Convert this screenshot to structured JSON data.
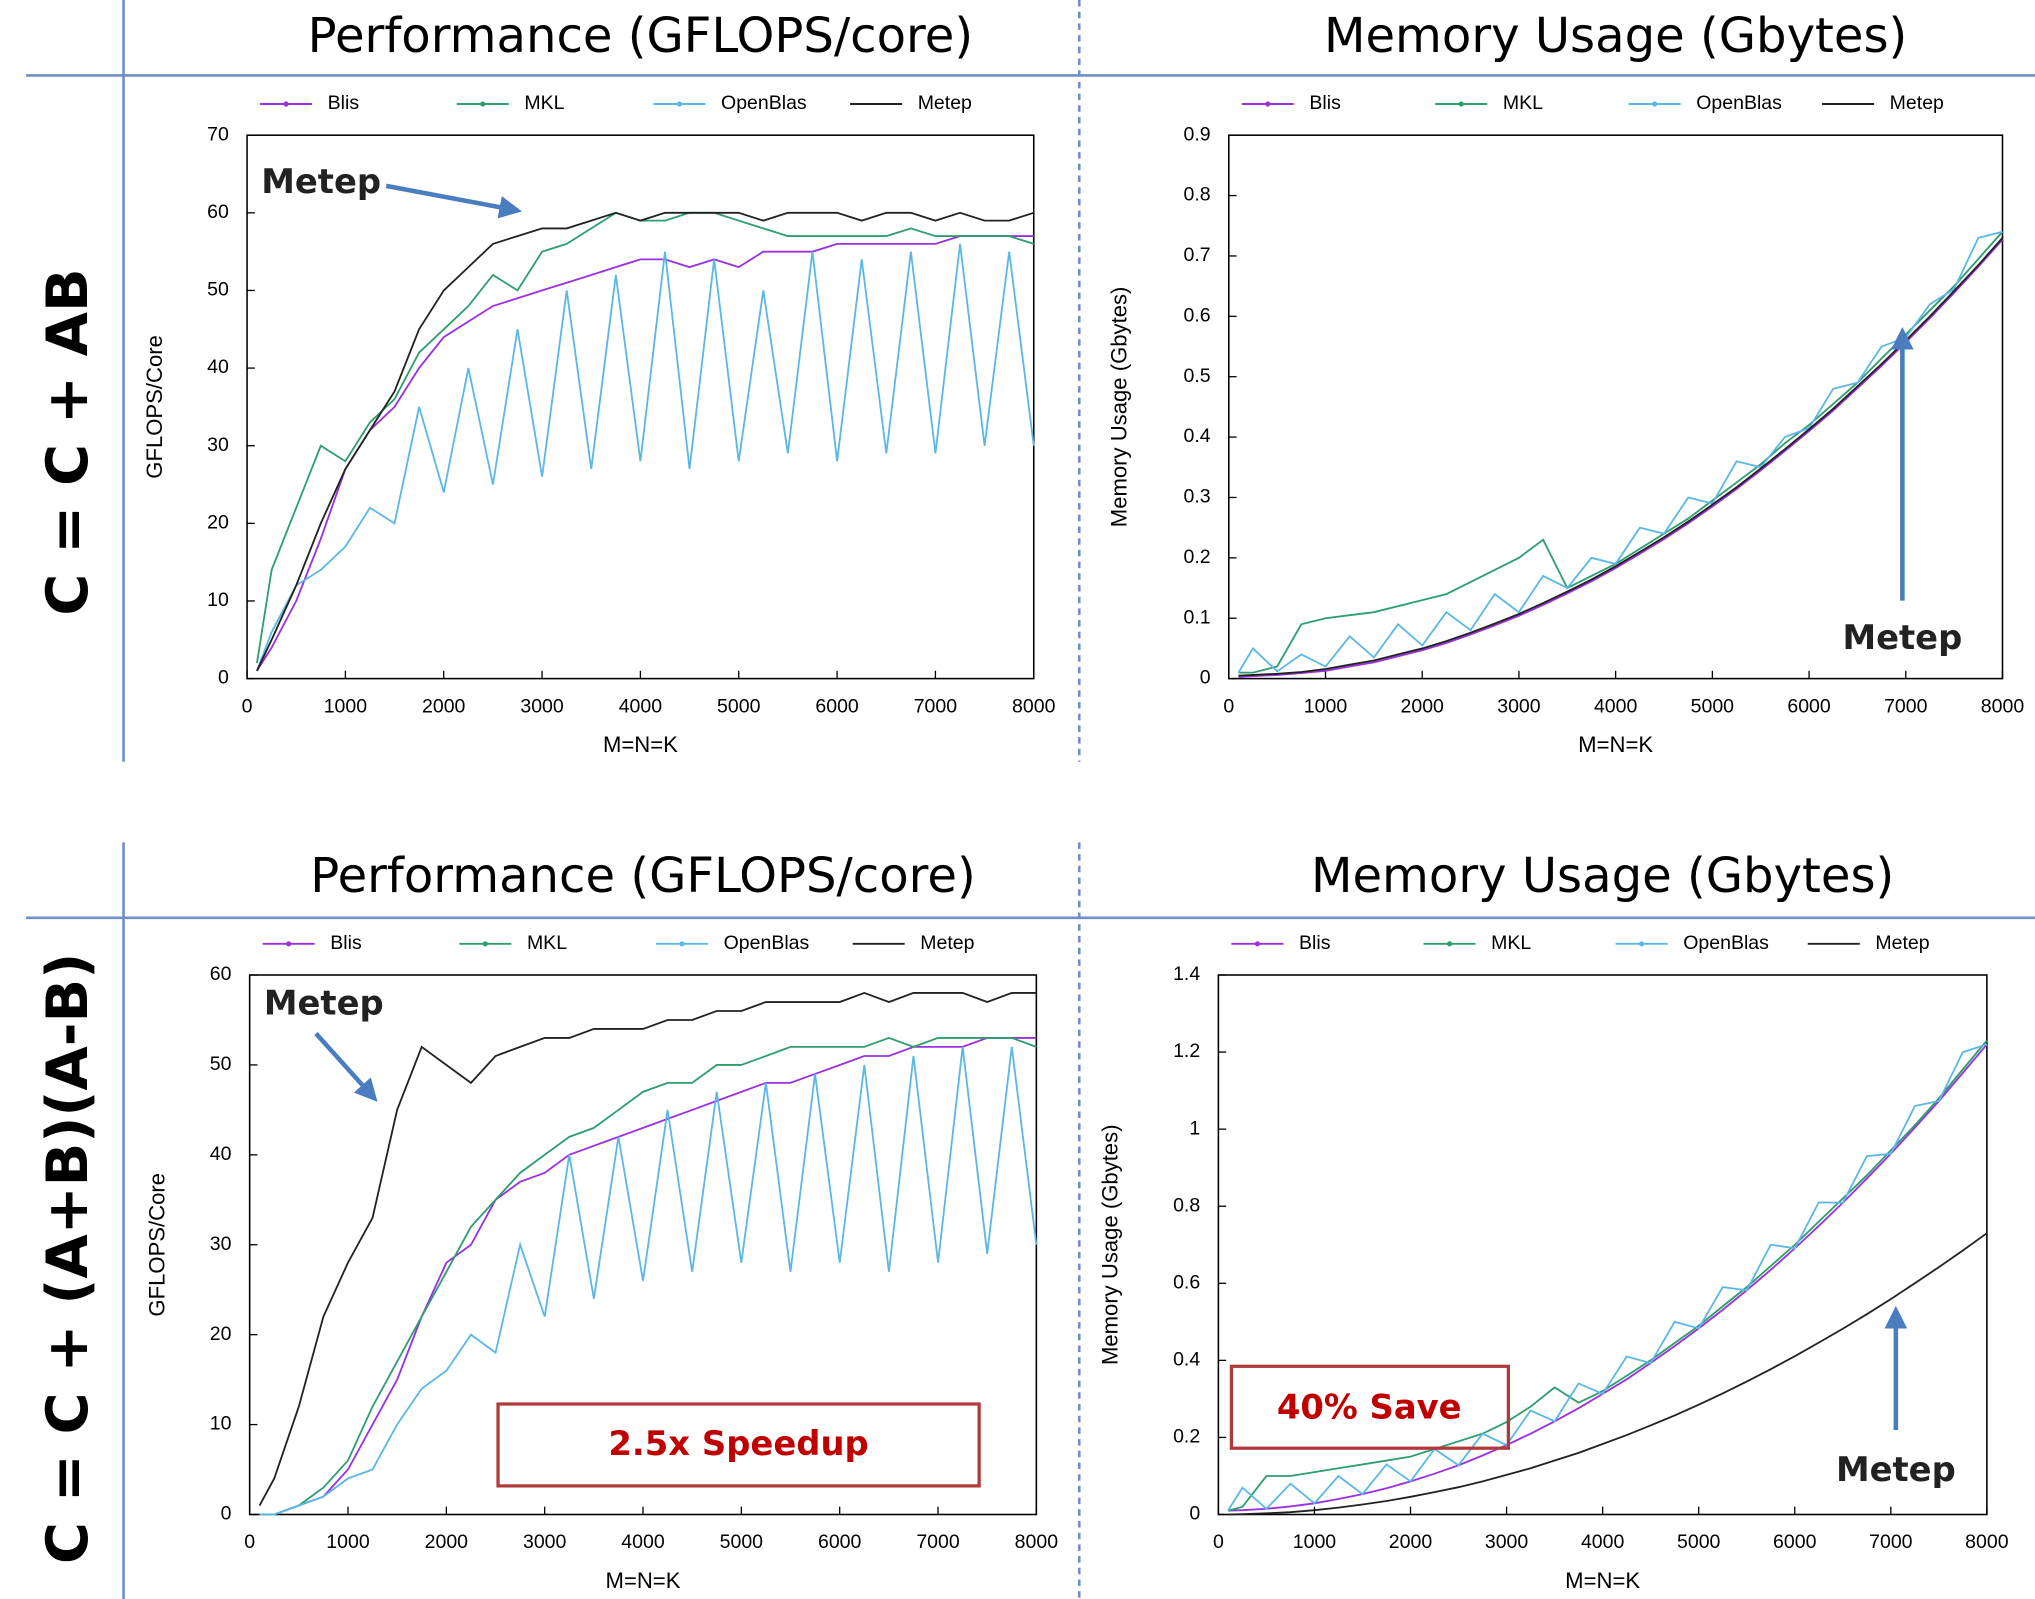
{
  "row_labels": [
    "C = C + AB",
    "C = C + (A+B)(A-B)"
  ],
  "chart_data": [
    {
      "type": "line",
      "title": "Performance (GFLOPS/core)",
      "x_label": "M=N=K",
      "y_label": "GFLOPS/Core",
      "x": [
        100,
        250,
        500,
        750,
        1000,
        1250,
        1500,
        1750,
        2000,
        2250,
        2500,
        2750,
        3000,
        3250,
        3500,
        3750,
        4000,
        4250,
        4500,
        4750,
        5000,
        5250,
        5500,
        5750,
        6000,
        6250,
        6500,
        6750,
        7000,
        7250,
        7500,
        7750,
        8000
      ],
      "xlim": [
        0,
        8000
      ],
      "xticks": [
        0,
        1000,
        2000,
        3000,
        4000,
        5000,
        6000,
        7000,
        8000
      ],
      "ylim": [
        0,
        70
      ],
      "yticks": [
        0,
        10,
        20,
        30,
        40,
        50,
        60,
        70
      ],
      "legend": "top",
      "series": [
        {
          "name": "Blis",
          "color": "#9b30e0",
          "values": [
            1,
            4,
            10,
            18,
            27,
            32,
            35,
            40,
            44,
            46,
            48,
            49,
            50,
            51,
            52,
            53,
            54,
            54,
            53,
            54,
            53,
            55,
            55,
            55,
            56,
            56,
            56,
            56,
            56,
            57,
            57,
            57,
            57
          ]
        },
        {
          "name": "MKL",
          "color": "#2e9e6e",
          "values": [
            2,
            14,
            22,
            30,
            28,
            33,
            36,
            42,
            45,
            48,
            52,
            50,
            55,
            56,
            58,
            60,
            59,
            59,
            60,
            60,
            59,
            58,
            57,
            57,
            57,
            57,
            57,
            58,
            57,
            57,
            57,
            57,
            56
          ]
        },
        {
          "name": "OpenBlas",
          "color": "#5bb8e6",
          "values": [
            1,
            6,
            12,
            14,
            17,
            22,
            20,
            35,
            24,
            40,
            25,
            45,
            26,
            50,
            27,
            52,
            28,
            55,
            27,
            54,
            28,
            50,
            29,
            55,
            28,
            54,
            29,
            55,
            29,
            56,
            30,
            55,
            30
          ]
        },
        {
          "name": "Metep",
          "color": "#222222",
          "values": [
            1,
            5,
            12,
            20,
            27,
            32,
            37,
            45,
            50,
            53,
            56,
            57,
            58,
            58,
            59,
            60,
            59,
            60,
            60,
            60,
            60,
            59,
            60,
            60,
            60,
            59,
            60,
            60,
            59,
            60,
            59,
            59,
            60
          ]
        }
      ],
      "annotations": [
        {
          "text": "Metep"
        }
      ]
    },
    {
      "type": "line",
      "title": "Memory Usage (Gbytes)",
      "x_label": "M=N=K",
      "y_label": "Memory Usage (Gbytes)",
      "x": [
        100,
        250,
        500,
        750,
        1000,
        1250,
        1500,
        1750,
        2000,
        2250,
        2500,
        2750,
        3000,
        3250,
        3500,
        3750,
        4000,
        4250,
        4500,
        4750,
        5000,
        5250,
        5500,
        5750,
        6000,
        6250,
        6500,
        6750,
        7000,
        7250,
        7500,
        7750,
        8000
      ],
      "xlim": [
        0,
        8000
      ],
      "xticks": [
        0,
        1000,
        2000,
        3000,
        4000,
        5000,
        6000,
        7000,
        8000
      ],
      "ylim": [
        0,
        0.9
      ],
      "yticks": [
        0,
        0.1,
        0.2,
        0.3,
        0.4,
        0.5,
        0.6,
        0.7,
        0.8,
        0.9
      ],
      "legend": "top",
      "series": [
        {
          "name": "Blis",
          "color": "#9b30e0",
          "values": [
            0.003,
            0.004,
            0.006,
            0.009,
            0.013,
            0.02,
            0.027,
            0.037,
            0.047,
            0.059,
            0.073,
            0.088,
            0.104,
            0.122,
            0.141,
            0.161,
            0.183,
            0.207,
            0.231,
            0.257,
            0.285,
            0.314,
            0.345,
            0.377,
            0.41,
            0.444,
            0.481,
            0.518,
            0.557,
            0.597,
            0.639,
            0.682,
            0.727
          ]
        },
        {
          "name": "MKL",
          "color": "#2e9e6e",
          "values": [
            0.01,
            0.01,
            0.02,
            0.09,
            0.1,
            0.105,
            0.11,
            0.12,
            0.13,
            0.14,
            0.16,
            0.18,
            0.2,
            0.23,
            0.15,
            0.17,
            0.19,
            0.215,
            0.24,
            0.265,
            0.295,
            0.325,
            0.355,
            0.39,
            0.42,
            0.455,
            0.49,
            0.53,
            0.57,
            0.61,
            0.65,
            0.695,
            0.74
          ]
        },
        {
          "name": "OpenBlas",
          "color": "#5bb8e6",
          "values": [
            0.01,
            0.05,
            0.012,
            0.04,
            0.02,
            0.07,
            0.035,
            0.09,
            0.055,
            0.11,
            0.08,
            0.14,
            0.11,
            0.17,
            0.15,
            0.2,
            0.19,
            0.25,
            0.24,
            0.3,
            0.29,
            0.36,
            0.35,
            0.4,
            0.415,
            0.48,
            0.49,
            0.55,
            0.565,
            0.62,
            0.645,
            0.73,
            0.74
          ]
        },
        {
          "name": "Metep",
          "color": "#222222",
          "values": [
            0.005,
            0.006,
            0.008,
            0.011,
            0.016,
            0.023,
            0.03,
            0.04,
            0.05,
            0.062,
            0.076,
            0.091,
            0.107,
            0.125,
            0.144,
            0.164,
            0.186,
            0.21,
            0.234,
            0.26,
            0.288,
            0.317,
            0.348,
            0.38,
            0.413,
            0.447,
            0.484,
            0.521,
            0.56,
            0.6,
            0.642,
            0.685,
            0.73
          ]
        }
      ],
      "annotations": [
        {
          "text": "Metep"
        }
      ]
    },
    {
      "type": "line",
      "title": "Performance (GFLOPS/core)",
      "x_label": "M=N=K",
      "y_label": "GFLOPS/Core",
      "x": [
        100,
        250,
        500,
        750,
        1000,
        1250,
        1500,
        1750,
        2000,
        2250,
        2500,
        2750,
        3000,
        3250,
        3500,
        3750,
        4000,
        4250,
        4500,
        4750,
        5000,
        5250,
        5500,
        5750,
        6000,
        6250,
        6500,
        6750,
        7000,
        7250,
        7500,
        7750,
        8000
      ],
      "xlim": [
        0,
        8000
      ],
      "xticks": [
        0,
        1000,
        2000,
        3000,
        4000,
        5000,
        6000,
        7000,
        8000
      ],
      "ylim": [
        0,
        60
      ],
      "yticks": [
        0,
        10,
        20,
        30,
        40,
        50,
        60
      ],
      "legend": "top",
      "series": [
        {
          "name": "Blis",
          "color": "#9b30e0",
          "values": [
            0,
            0,
            1,
            2,
            5,
            10,
            15,
            22,
            28,
            30,
            35,
            37,
            38,
            40,
            41,
            42,
            43,
            44,
            45,
            46,
            47,
            48,
            48,
            49,
            50,
            51,
            51,
            52,
            52,
            52,
            53,
            53,
            53
          ]
        },
        {
          "name": "MKL",
          "color": "#2e9e6e",
          "values": [
            0,
            0,
            1,
            3,
            6,
            12,
            17,
            22,
            27,
            32,
            35,
            38,
            40,
            42,
            43,
            45,
            47,
            48,
            48,
            50,
            50,
            51,
            52,
            52,
            52,
            52,
            53,
            52,
            53,
            53,
            53,
            53,
            52
          ]
        },
        {
          "name": "OpenBlas",
          "color": "#5bb8e6",
          "values": [
            0,
            0,
            1,
            2,
            4,
            5,
            10,
            14,
            16,
            20,
            18,
            30,
            22,
            40,
            24,
            42,
            26,
            45,
            27,
            47,
            28,
            48,
            27,
            49,
            28,
            50,
            27,
            51,
            28,
            52,
            29,
            52,
            30
          ]
        },
        {
          "name": "Metep",
          "color": "#222222",
          "values": [
            1,
            4,
            12,
            22,
            28,
            33,
            45,
            52,
            50,
            48,
            51,
            52,
            53,
            53,
            54,
            54,
            54,
            55,
            55,
            56,
            56,
            57,
            57,
            57,
            57,
            58,
            57,
            58,
            58,
            58,
            57,
            58,
            58
          ]
        }
      ],
      "annotations": [
        {
          "text": "Metep"
        },
        {
          "text": "2.5x Speedup"
        }
      ]
    },
    {
      "type": "line",
      "title": "Memory Usage (Gbytes)",
      "x_label": "M=N=K",
      "y_label": "Memory Usage (Gbytes)",
      "x": [
        100,
        250,
        500,
        750,
        1000,
        1250,
        1500,
        1750,
        2000,
        2250,
        2500,
        2750,
        3000,
        3250,
        3500,
        3750,
        4000,
        4250,
        4500,
        4750,
        5000,
        5250,
        5500,
        5750,
        6000,
        6250,
        6500,
        6750,
        7000,
        7250,
        7500,
        7750,
        8000
      ],
      "xlim": [
        0,
        8000
      ],
      "xticks": [
        0,
        1000,
        2000,
        3000,
        4000,
        5000,
        6000,
        7000,
        8000
      ],
      "ylim": [
        0,
        1.4
      ],
      "yticks": [
        0,
        0.2,
        0.4,
        0.6,
        0.8,
        1,
        1.2,
        1.4
      ],
      "legend": "top",
      "series": [
        {
          "name": "Blis",
          "color": "#9b30e0",
          "values": [
            0.01,
            0.011,
            0.015,
            0.021,
            0.029,
            0.04,
            0.053,
            0.068,
            0.086,
            0.106,
            0.128,
            0.153,
            0.18,
            0.21,
            0.242,
            0.276,
            0.313,
            0.351,
            0.393,
            0.437,
            0.483,
            0.531,
            0.582,
            0.635,
            0.691,
            0.749,
            0.809,
            0.872,
            0.936,
            1.004,
            1.073,
            1.146,
            1.22
          ]
        },
        {
          "name": "MKL",
          "color": "#2e9e6e",
          "values": [
            0.01,
            0.02,
            0.1,
            0.1,
            0.11,
            0.12,
            0.13,
            0.14,
            0.15,
            0.17,
            0.19,
            0.21,
            0.24,
            0.28,
            0.33,
            0.29,
            0.32,
            0.36,
            0.4,
            0.445,
            0.49,
            0.54,
            0.59,
            0.645,
            0.7,
            0.76,
            0.82,
            0.88,
            0.945,
            1.01,
            1.08,
            1.155,
            1.23
          ]
        },
        {
          "name": "OpenBlas",
          "color": "#5bb8e6",
          "values": [
            0.01,
            0.07,
            0.015,
            0.08,
            0.029,
            0.1,
            0.053,
            0.13,
            0.086,
            0.17,
            0.128,
            0.21,
            0.18,
            0.27,
            0.242,
            0.34,
            0.313,
            0.41,
            0.393,
            0.5,
            0.483,
            0.59,
            0.582,
            0.7,
            0.691,
            0.81,
            0.809,
            0.93,
            0.936,
            1.06,
            1.073,
            1.2,
            1.22
          ]
        },
        {
          "name": "Metep",
          "color": "#222222",
          "values": [
            0,
            0.001,
            0.003,
            0.006,
            0.011,
            0.018,
            0.026,
            0.035,
            0.046,
            0.058,
            0.071,
            0.086,
            0.103,
            0.12,
            0.14,
            0.16,
            0.183,
            0.206,
            0.231,
            0.257,
            0.285,
            0.314,
            0.345,
            0.377,
            0.411,
            0.446,
            0.482,
            0.52,
            0.559,
            0.6,
            0.642,
            0.685,
            0.73
          ]
        }
      ],
      "annotations": [
        {
          "text": "40% Save"
        },
        {
          "text": "Metep"
        }
      ]
    }
  ]
}
